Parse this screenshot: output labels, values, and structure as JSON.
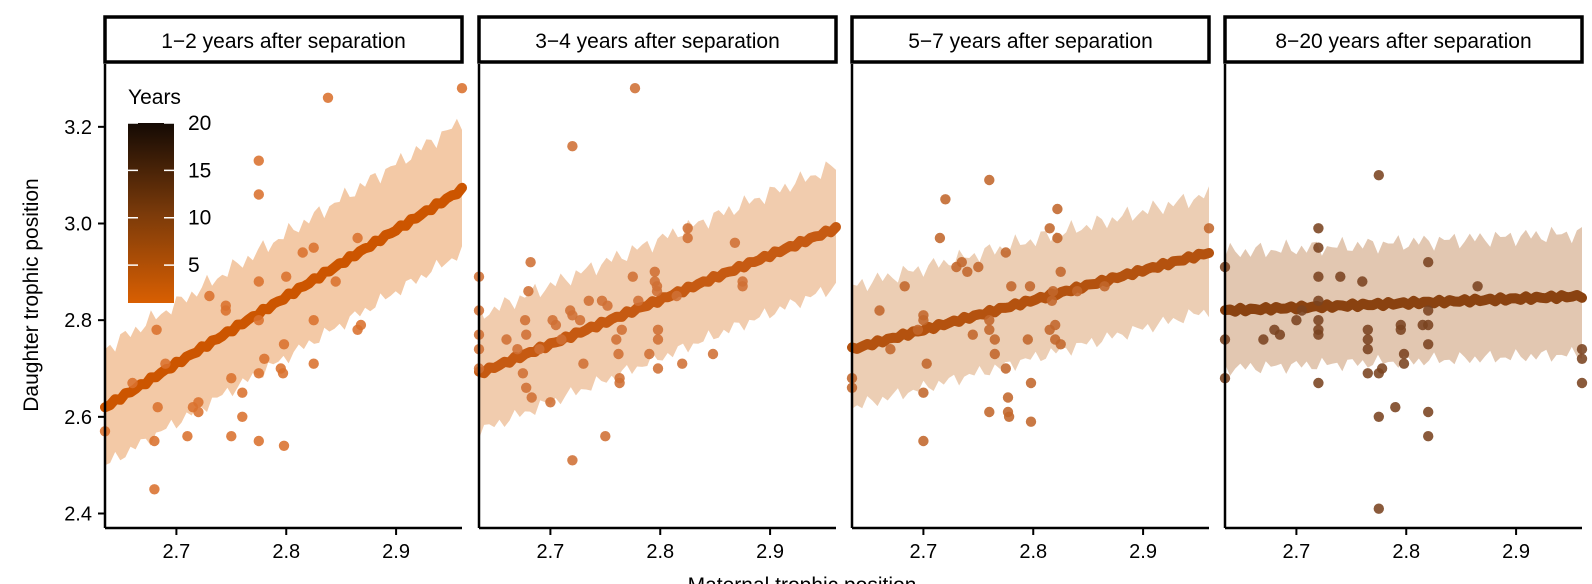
{
  "chart_data": {
    "type": "scatter",
    "xlabel": "Maternal trophic position",
    "ylabel": "Daughter trophic position",
    "xlim": [
      2.635,
      2.96
    ],
    "ylim": [
      2.37,
      3.33
    ],
    "x_ticks": [
      2.7,
      2.8,
      2.9
    ],
    "x_tick_labels": [
      "2.7",
      "2.8",
      "2.9"
    ],
    "y_ticks": [
      2.4,
      2.6,
      2.8,
      3.0,
      3.2
    ],
    "y_tick_labels": [
      "2.4",
      "2.6",
      "2.8",
      "3.0",
      "3.2"
    ],
    "legend": {
      "title": "Years",
      "placement": "top-left inside first panel",
      "min": 1,
      "max": 20,
      "ticks": [
        5,
        10,
        15,
        20
      ],
      "tick_labels": [
        "5",
        "10",
        "15",
        "20"
      ],
      "color_low": "#d95f02",
      "color_mid": "#7a3a0a",
      "color_high": "#140a04"
    },
    "facets": [
      {
        "title": "1−2 years after separation",
        "line_color": "#cc5500",
        "point_color": "#d9712d",
        "band_color": "#f3c9a6",
        "fit": {
          "x": [
            2.635,
            2.96
          ],
          "y": [
            2.62,
            3.07
          ]
        },
        "band": {
          "lower": [
            2.5,
            2.94
          ],
          "upper": [
            2.74,
            3.21
          ]
        },
        "points": [
          [
            2.635,
            2.57
          ],
          [
            2.66,
            2.67
          ],
          [
            2.68,
            2.55
          ],
          [
            2.68,
            2.45
          ],
          [
            2.682,
            2.78
          ],
          [
            2.683,
            2.62
          ],
          [
            2.69,
            2.71
          ],
          [
            2.71,
            2.56
          ],
          [
            2.715,
            2.62
          ],
          [
            2.72,
            2.63
          ],
          [
            2.72,
            2.61
          ],
          [
            2.73,
            2.85
          ],
          [
            2.745,
            2.83
          ],
          [
            2.745,
            2.82
          ],
          [
            2.75,
            2.68
          ],
          [
            2.75,
            2.56
          ],
          [
            2.76,
            2.65
          ],
          [
            2.76,
            2.6
          ],
          [
            2.775,
            3.13
          ],
          [
            2.775,
            3.06
          ],
          [
            2.775,
            2.88
          ],
          [
            2.775,
            2.8
          ],
          [
            2.775,
            2.69
          ],
          [
            2.775,
            2.55
          ],
          [
            2.78,
            2.72
          ],
          [
            2.795,
            2.7
          ],
          [
            2.797,
            2.69
          ],
          [
            2.798,
            2.75
          ],
          [
            2.798,
            2.54
          ],
          [
            2.8,
            2.89
          ],
          [
            2.815,
            2.94
          ],
          [
            2.825,
            2.95
          ],
          [
            2.825,
            2.8
          ],
          [
            2.825,
            2.71
          ],
          [
            2.838,
            3.26
          ],
          [
            2.845,
            2.88
          ],
          [
            2.865,
            2.97
          ],
          [
            2.865,
            2.78
          ],
          [
            2.868,
            2.79
          ],
          [
            2.96,
            3.28
          ]
        ]
      },
      {
        "title": "3−4  years after separation",
        "line_color": "#c65a12",
        "point_color": "#cf6f34",
        "band_color": "#f1ccae",
        "fit": {
          "x": [
            2.635,
            2.96
          ],
          "y": [
            2.69,
            2.99
          ]
        },
        "band": {
          "lower": [
            2.57,
            2.87
          ],
          "upper": [
            2.81,
            3.12
          ]
        },
        "points": [
          [
            2.635,
            2.89
          ],
          [
            2.635,
            2.82
          ],
          [
            2.635,
            2.77
          ],
          [
            2.635,
            2.74
          ],
          [
            2.635,
            2.7
          ],
          [
            2.66,
            2.76
          ],
          [
            2.67,
            2.74
          ],
          [
            2.675,
            2.69
          ],
          [
            2.677,
            2.8
          ],
          [
            2.678,
            2.77
          ],
          [
            2.678,
            2.66
          ],
          [
            2.68,
            2.86
          ],
          [
            2.682,
            2.92
          ],
          [
            2.683,
            2.64
          ],
          [
            2.69,
            2.74
          ],
          [
            2.7,
            2.63
          ],
          [
            2.702,
            2.8
          ],
          [
            2.705,
            2.79
          ],
          [
            2.71,
            2.76
          ],
          [
            2.718,
            2.82
          ],
          [
            2.72,
            2.81
          ],
          [
            2.72,
            3.16
          ],
          [
            2.72,
            2.51
          ],
          [
            2.727,
            2.8
          ],
          [
            2.73,
            2.71
          ],
          [
            2.735,
            2.84
          ],
          [
            2.747,
            2.84
          ],
          [
            2.75,
            2.56
          ],
          [
            2.752,
            2.83
          ],
          [
            2.76,
            2.76
          ],
          [
            2.762,
            2.73
          ],
          [
            2.763,
            2.68
          ],
          [
            2.763,
            2.67
          ],
          [
            2.765,
            2.78
          ],
          [
            2.775,
            2.89
          ],
          [
            2.777,
            3.28
          ],
          [
            2.78,
            2.84
          ],
          [
            2.79,
            2.73
          ],
          [
            2.795,
            2.88
          ],
          [
            2.795,
            2.9
          ],
          [
            2.797,
            2.87
          ],
          [
            2.797,
            2.86
          ],
          [
            2.798,
            2.78
          ],
          [
            2.798,
            2.76
          ],
          [
            2.798,
            2.7
          ],
          [
            2.815,
            2.85
          ],
          [
            2.82,
            2.71
          ],
          [
            2.825,
            2.99
          ],
          [
            2.825,
            2.97
          ],
          [
            2.848,
            2.73
          ],
          [
            2.868,
            2.96
          ],
          [
            2.875,
            2.88
          ],
          [
            2.875,
            2.87
          ]
        ]
      },
      {
        "title": "5−7  years after separation",
        "line_color": "#b4520f",
        "point_color": "#c2662b",
        "band_color": "#ecceb4",
        "fit": {
          "x": [
            2.635,
            2.96
          ],
          "y": [
            2.74,
            2.94
          ]
        },
        "band": {
          "lower": [
            2.62,
            2.82
          ],
          "upper": [
            2.87,
            3.06
          ]
        },
        "points": [
          [
            2.635,
            2.68
          ],
          [
            2.635,
            2.66
          ],
          [
            2.66,
            2.82
          ],
          [
            2.67,
            2.74
          ],
          [
            2.683,
            2.87
          ],
          [
            2.695,
            2.78
          ],
          [
            2.7,
            2.81
          ],
          [
            2.7,
            2.8
          ],
          [
            2.7,
            2.65
          ],
          [
            2.7,
            2.55
          ],
          [
            2.703,
            2.71
          ],
          [
            2.715,
            2.97
          ],
          [
            2.72,
            3.05
          ],
          [
            2.73,
            2.91
          ],
          [
            2.735,
            2.92
          ],
          [
            2.74,
            2.9
          ],
          [
            2.745,
            2.77
          ],
          [
            2.75,
            2.91
          ],
          [
            2.76,
            3.09
          ],
          [
            2.76,
            2.8
          ],
          [
            2.76,
            2.78
          ],
          [
            2.76,
            2.61
          ],
          [
            2.765,
            2.76
          ],
          [
            2.765,
            2.73
          ],
          [
            2.775,
            2.94
          ],
          [
            2.775,
            2.7
          ],
          [
            2.777,
            2.64
          ],
          [
            2.777,
            2.61
          ],
          [
            2.778,
            2.6
          ],
          [
            2.78,
            2.87
          ],
          [
            2.795,
            2.76
          ],
          [
            2.797,
            2.87
          ],
          [
            2.798,
            2.67
          ],
          [
            2.798,
            2.59
          ],
          [
            2.815,
            2.99
          ],
          [
            2.815,
            2.78
          ],
          [
            2.817,
            2.84
          ],
          [
            2.818,
            2.86
          ],
          [
            2.82,
            2.79
          ],
          [
            2.82,
            2.76
          ],
          [
            2.822,
            3.03
          ],
          [
            2.822,
            2.97
          ],
          [
            2.825,
            2.9
          ],
          [
            2.825,
            2.75
          ],
          [
            2.84,
            2.86
          ],
          [
            2.865,
            2.87
          ],
          [
            2.96,
            2.99
          ]
        ]
      },
      {
        "title": "8−20  years after separation",
        "line_color": "#8a4210",
        "point_color": "#7a4320",
        "band_color": "#e2c7b1",
        "fit": {
          "x": [
            2.635,
            2.96
          ],
          "y": [
            2.82,
            2.85
          ]
        },
        "band": {
          "lower": [
            2.7,
            2.73
          ],
          "upper": [
            2.94,
            2.98
          ]
        },
        "points": [
          [
            2.635,
            2.91
          ],
          [
            2.635,
            2.76
          ],
          [
            2.635,
            2.68
          ],
          [
            2.67,
            2.76
          ],
          [
            2.68,
            2.78
          ],
          [
            2.685,
            2.77
          ],
          [
            2.7,
            2.8
          ],
          [
            2.705,
            2.82
          ],
          [
            2.72,
            2.99
          ],
          [
            2.72,
            2.95
          ],
          [
            2.72,
            2.89
          ],
          [
            2.72,
            2.84
          ],
          [
            2.72,
            2.8
          ],
          [
            2.72,
            2.78
          ],
          [
            2.72,
            2.77
          ],
          [
            2.72,
            2.67
          ],
          [
            2.74,
            2.89
          ],
          [
            2.76,
            2.88
          ],
          [
            2.765,
            2.78
          ],
          [
            2.765,
            2.76
          ],
          [
            2.765,
            2.74
          ],
          [
            2.765,
            2.69
          ],
          [
            2.775,
            3.1
          ],
          [
            2.775,
            2.69
          ],
          [
            2.775,
            2.6
          ],
          [
            2.775,
            2.41
          ],
          [
            2.778,
            2.7
          ],
          [
            2.79,
            2.62
          ],
          [
            2.795,
            2.79
          ],
          [
            2.795,
            2.78
          ],
          [
            2.798,
            2.73
          ],
          [
            2.798,
            2.71
          ],
          [
            2.815,
            2.79
          ],
          [
            2.82,
            2.82
          ],
          [
            2.82,
            2.92
          ],
          [
            2.82,
            2.79
          ],
          [
            2.82,
            2.75
          ],
          [
            2.82,
            2.61
          ],
          [
            2.82,
            2.56
          ],
          [
            2.865,
            2.87
          ],
          [
            2.96,
            2.74
          ],
          [
            2.96,
            2.72
          ],
          [
            2.96,
            2.67
          ]
        ]
      }
    ]
  }
}
